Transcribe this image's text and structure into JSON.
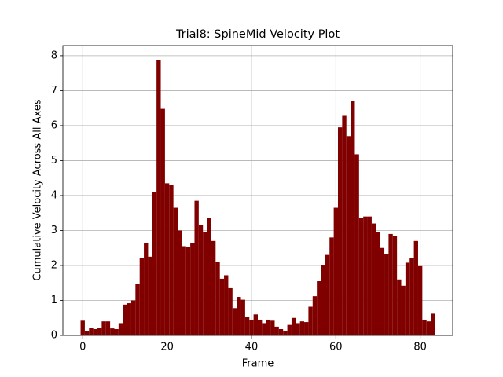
{
  "chart_data": {
    "type": "bar",
    "title": "Trial8: SpineMid Velocity Plot",
    "xlabel": "Frame",
    "ylabel": "Cumulative Velocity Across All Axes",
    "color": "#800000",
    "grid": true,
    "x": [
      0,
      1,
      2,
      3,
      4,
      5,
      6,
      7,
      8,
      9,
      10,
      11,
      12,
      13,
      14,
      15,
      16,
      17,
      18,
      19,
      20,
      21,
      22,
      23,
      24,
      25,
      26,
      27,
      28,
      29,
      30,
      31,
      32,
      33,
      34,
      35,
      36,
      37,
      38,
      39,
      40,
      41,
      42,
      43,
      44,
      45,
      46,
      47,
      48,
      49,
      50,
      51,
      52,
      53,
      54,
      55,
      56,
      57,
      58,
      59,
      60,
      61,
      62,
      63,
      64,
      65,
      66,
      67,
      68,
      69,
      70,
      71,
      72,
      73,
      74,
      75,
      76,
      77,
      78,
      79,
      80,
      81,
      82,
      83
    ],
    "values": [
      0.42,
      0.12,
      0.22,
      0.18,
      0.22,
      0.4,
      0.4,
      0.2,
      0.18,
      0.35,
      0.88,
      0.92,
      1.0,
      1.48,
      2.22,
      2.65,
      2.25,
      4.1,
      7.88,
      6.48,
      4.35,
      4.3,
      3.65,
      3.0,
      2.55,
      2.52,
      2.65,
      3.85,
      3.15,
      2.95,
      3.35,
      2.7,
      2.1,
      1.62,
      1.72,
      1.35,
      0.78,
      1.1,
      1.02,
      0.52,
      0.45,
      0.6,
      0.45,
      0.35,
      0.45,
      0.42,
      0.25,
      0.18,
      0.12,
      0.3,
      0.5,
      0.35,
      0.4,
      0.38,
      0.82,
      1.12,
      1.55,
      2.0,
      2.3,
      2.8,
      3.65,
      5.95,
      6.28,
      5.7,
      6.7,
      5.18,
      3.35,
      3.4,
      3.4,
      3.2,
      2.95,
      2.5,
      2.32,
      2.9,
      2.85,
      1.6,
      1.42,
      2.08,
      2.22,
      2.7,
      1.98,
      0.45,
      0.4,
      0.62
    ],
    "xlim": [
      -4.7,
      87.7
    ],
    "xticks": [
      0,
      20,
      40,
      60,
      80
    ],
    "ylim": [
      0,
      8.29
    ],
    "yticks": [
      0,
      1,
      2,
      3,
      4,
      5,
      6,
      7,
      8
    ]
  }
}
